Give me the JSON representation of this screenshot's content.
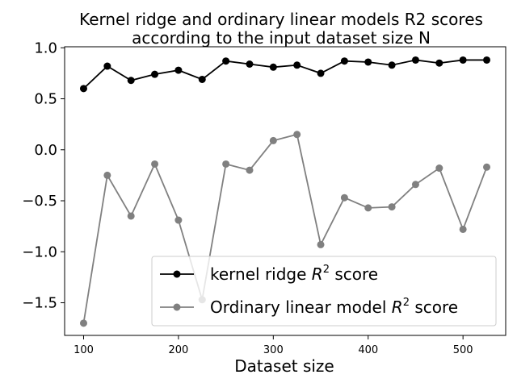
{
  "chart_data": {
    "type": "line",
    "title_line1": "Kernel ridge and ordinary linear models R2 scores",
    "title_line2": "according to the input dataset size N",
    "xlabel": "Dataset size",
    "ylabel": "",
    "xlim": [
      80,
      545
    ],
    "ylim": [
      -1.82,
      1.01
    ],
    "xticks": [
      100,
      200,
      300,
      400,
      500
    ],
    "yticks": [
      1.0,
      0.5,
      0.0,
      -0.5,
      -1.0,
      -1.5
    ],
    "ytick_labels": [
      "1.0",
      "0.5",
      "0.0",
      "−0.5",
      "−1.0",
      "−1.5"
    ],
    "grid": false,
    "legend_position": "lower-right",
    "x": [
      100,
      125,
      150,
      175,
      200,
      225,
      250,
      275,
      300,
      325,
      350,
      375,
      400,
      425,
      450,
      475,
      500,
      525
    ],
    "series": [
      {
        "legend_prefix": "kernel ridge ",
        "legend_var": "R",
        "legend_sup": "2",
        "legend_suffix": " score",
        "color": "#000000",
        "values": [
          0.6,
          0.82,
          0.68,
          0.74,
          0.78,
          0.69,
          0.87,
          0.84,
          0.81,
          0.83,
          0.75,
          0.87,
          0.86,
          0.83,
          0.88,
          0.85,
          0.88,
          0.88
        ]
      },
      {
        "legend_prefix": "Ordinary linear model ",
        "legend_var": "R",
        "legend_sup": "2",
        "legend_suffix": " score",
        "color": "#808080",
        "values": [
          -1.7,
          -0.25,
          -0.65,
          -0.14,
          -0.69,
          -1.47,
          -0.14,
          -0.2,
          0.09,
          0.15,
          -0.93,
          -0.47,
          -0.57,
          -0.56,
          -0.34,
          -0.18,
          -0.78,
          -0.17
        ]
      }
    ]
  }
}
